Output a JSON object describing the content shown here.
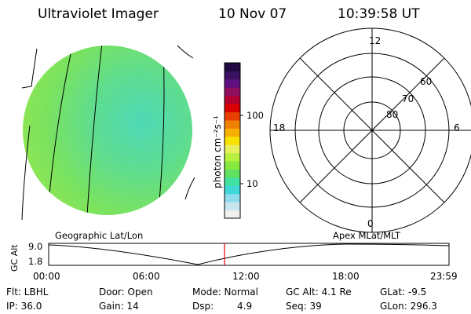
{
  "header": {
    "instrument": "Ultraviolet Imager",
    "date": "10 Nov 07",
    "time": "10:39:58 UT"
  },
  "colorbar": {
    "unit_label": "photon cm⁻²s⁻¹",
    "ticks": [
      "100",
      "10"
    ],
    "colors": [
      "#f0f0f0",
      "#c8e6f0",
      "#8fdcec",
      "#40d8d8",
      "#40e0a0",
      "#60e060",
      "#88e840",
      "#b8f040",
      "#e8f060",
      "#f8e000",
      "#f8b000",
      "#f08000",
      "#e84000",
      "#d80000",
      "#b00030",
      "#901060",
      "#601080",
      "#3a1060",
      "#200840"
    ]
  },
  "polar": {
    "mlt_labels": {
      "top": "12",
      "left": "18",
      "right": "6",
      "bottom": "0"
    },
    "lat_labels": [
      "60",
      "70",
      "80"
    ]
  },
  "timeline": {
    "ylabel": "GC Alt",
    "yticks": [
      "9.0",
      "1.8"
    ],
    "left_label": "Geographic Lat/Lon",
    "right_label": "Apex  MLat/MLT",
    "xticks": [
      "00:00",
      "06:00",
      "12:00",
      "18:00",
      "23:59"
    ],
    "current_marker_color": "#e00000"
  },
  "footer": {
    "filter": "Flt: LBHL",
    "ip": "IP: 36.0",
    "door": "Door: Open",
    "gain": "Gain: 14",
    "mode": "Mode: Normal",
    "dsp_label": "Dsp:",
    "dsp_value": "4.9",
    "gc_alt": "GC Alt: 4.1 Re",
    "seq": "Seq: 39",
    "glat": "GLat:  -9.5",
    "glon": "GLon: 296.3"
  }
}
